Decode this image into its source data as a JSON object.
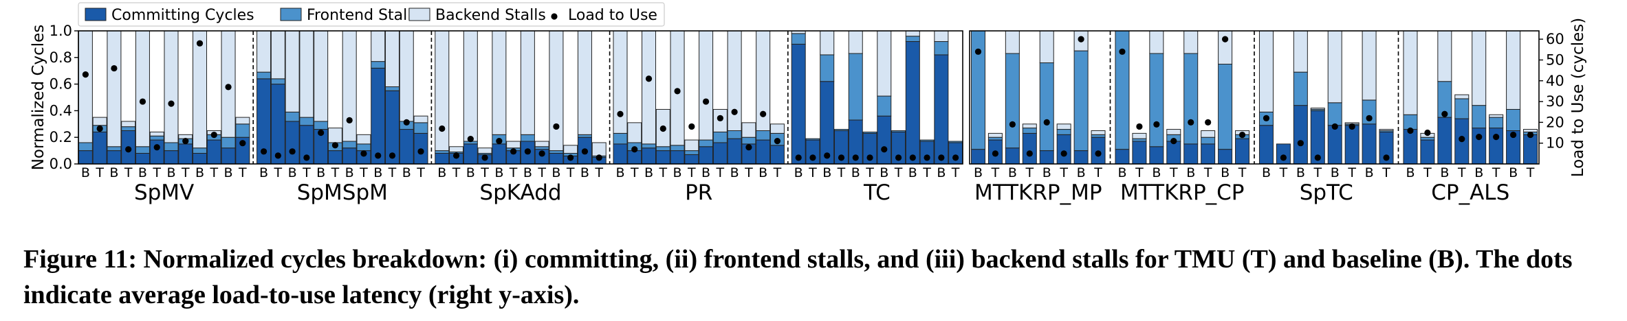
{
  "figure": {
    "caption": "Figure 11: Normalized cycles breakdown: (i) committing, (ii) frontend stalls, and (iii) backend stalls for TMU (T) and baseline (B). The dots indicate average load-to-use latency (right y-axis)."
  },
  "colors": {
    "committing": "#1a5aa9",
    "frontend": "#4b92cc",
    "backend": "#d6e4f3",
    "backend_stroke": "#222222",
    "dot": "#000000"
  },
  "chart_data": [
    {
      "type": "bar",
      "stacked": true,
      "panel": "left",
      "ylabel": "Normalized Cycles",
      "ylim": [
        0,
        1.0
      ],
      "yticks": [
        "0.0",
        "0.2",
        "0.4",
        "0.6",
        "0.8",
        "1.0"
      ],
      "legend": {
        "placement": "top-left",
        "entries": [
          "Committing Cycles",
          "Frontend Stalls",
          "Backend Stalls",
          "Load to Use"
        ]
      },
      "groups": [
        {
          "name": "SpMV",
          "bars": [
            {
              "label": "B",
              "committing": 0.1,
              "frontend": 0.06,
              "backend": 0.84,
              "load_to_use": 43
            },
            {
              "label": "T",
              "committing": 0.24,
              "frontend": 0.05,
              "backend": 0.06,
              "load_to_use": 17
            },
            {
              "label": "B",
              "committing": 0.1,
              "frontend": 0.03,
              "backend": 0.87,
              "load_to_use": 46
            },
            {
              "label": "T",
              "committing": 0.25,
              "frontend": 0.03,
              "backend": 0.04,
              "load_to_use": 7
            },
            {
              "label": "B",
              "committing": 0.08,
              "frontend": 0.05,
              "backend": 0.87,
              "load_to_use": 30
            },
            {
              "label": "T",
              "committing": 0.18,
              "frontend": 0.03,
              "backend": 0.03,
              "load_to_use": 8
            },
            {
              "label": "B",
              "committing": 0.1,
              "frontend": 0.06,
              "backend": 0.84,
              "load_to_use": 29
            },
            {
              "label": "T",
              "committing": 0.15,
              "frontend": 0.04,
              "backend": 0.03,
              "load_to_use": 11
            },
            {
              "label": "B",
              "committing": 0.08,
              "frontend": 0.04,
              "backend": 0.88,
              "load_to_use": 58
            },
            {
              "label": "T",
              "committing": 0.18,
              "frontend": 0.04,
              "backend": 0.03,
              "load_to_use": 14
            },
            {
              "label": "B",
              "committing": 0.12,
              "frontend": 0.08,
              "backend": 0.8,
              "load_to_use": 37
            },
            {
              "label": "T",
              "committing": 0.2,
              "frontend": 0.1,
              "backend": 0.05,
              "load_to_use": 10
            }
          ]
        },
        {
          "name": "SpMSpM",
          "bars": [
            {
              "label": "B",
              "committing": 0.64,
              "frontend": 0.05,
              "backend": 0.31,
              "load_to_use": 6
            },
            {
              "label": "T",
              "committing": 0.6,
              "frontend": 0.04,
              "backend": 0.36,
              "load_to_use": 4
            },
            {
              "label": "B",
              "committing": 0.32,
              "frontend": 0.07,
              "backend": 0.61,
              "load_to_use": 6
            },
            {
              "label": "T",
              "committing": 0.29,
              "frontend": 0.06,
              "backend": 0.65,
              "load_to_use": 3
            },
            {
              "label": "B",
              "committing": 0.26,
              "frontend": 0.06,
              "backend": 0.68,
              "load_to_use": 15
            },
            {
              "label": "T",
              "committing": 0.1,
              "frontend": 0.06,
              "backend": 0.11,
              "load_to_use": 9
            },
            {
              "label": "B",
              "committing": 0.12,
              "frontend": 0.05,
              "backend": 0.83,
              "load_to_use": 21
            },
            {
              "label": "T",
              "committing": 0.1,
              "frontend": 0.05,
              "backend": 0.07,
              "load_to_use": 5
            },
            {
              "label": "B",
              "committing": 0.72,
              "frontend": 0.05,
              "backend": 0.23,
              "load_to_use": 4
            },
            {
              "label": "T",
              "committing": 0.55,
              "frontend": 0.03,
              "backend": 0.42,
              "load_to_use": 4
            },
            {
              "label": "B",
              "committing": 0.26,
              "frontend": 0.06,
              "backend": 0.68,
              "load_to_use": 20
            },
            {
              "label": "T",
              "committing": 0.23,
              "frontend": 0.08,
              "backend": 0.05,
              "load_to_use": 6
            }
          ]
        },
        {
          "name": "SpKAdd",
          "bars": [
            {
              "label": "B",
              "committing": 0.08,
              "frontend": 0.02,
              "backend": 0.9,
              "load_to_use": 17
            },
            {
              "label": "T",
              "committing": 0.08,
              "frontend": 0.01,
              "backend": 0.04,
              "load_to_use": 4
            },
            {
              "label": "B",
              "committing": 0.15,
              "frontend": 0.02,
              "backend": 0.83,
              "load_to_use": 12
            },
            {
              "label": "T",
              "committing": 0.07,
              "frontend": 0.01,
              "backend": 0.04,
              "load_to_use": 3
            },
            {
              "label": "B",
              "committing": 0.15,
              "frontend": 0.07,
              "backend": 0.78,
              "load_to_use": 11
            },
            {
              "label": "T",
              "committing": 0.1,
              "frontend": 0.02,
              "backend": 0.05,
              "load_to_use": 6
            },
            {
              "label": "B",
              "committing": 0.17,
              "frontend": 0.05,
              "backend": 0.78,
              "load_to_use": 6
            },
            {
              "label": "T",
              "committing": 0.11,
              "frontend": 0.02,
              "backend": 0.04,
              "load_to_use": 5
            },
            {
              "label": "B",
              "committing": 0.08,
              "frontend": 0.02,
              "backend": 0.9,
              "load_to_use": 18
            },
            {
              "label": "T",
              "committing": 0.06,
              "frontend": 0.02,
              "backend": 0.06,
              "load_to_use": 3
            },
            {
              "label": "B",
              "committing": 0.2,
              "frontend": 0.02,
              "backend": 0.78,
              "load_to_use": 6
            },
            {
              "label": "T",
              "committing": 0.05,
              "frontend": 0.01,
              "backend": 0.1,
              "load_to_use": 3
            }
          ]
        },
        {
          "name": "PR",
          "bars": [
            {
              "label": "B",
              "committing": 0.15,
              "frontend": 0.08,
              "backend": 0.77,
              "load_to_use": 24
            },
            {
              "label": "T",
              "committing": 0.1,
              "frontend": 0.06,
              "backend": 0.15,
              "load_to_use": 7
            },
            {
              "label": "B",
              "committing": 0.12,
              "frontend": 0.03,
              "backend": 0.85,
              "load_to_use": 41
            },
            {
              "label": "T",
              "committing": 0.1,
              "frontend": 0.03,
              "backend": 0.28,
              "load_to_use": 17
            },
            {
              "label": "B",
              "committing": 0.1,
              "frontend": 0.04,
              "backend": 0.86,
              "load_to_use": 35
            },
            {
              "label": "T",
              "committing": 0.07,
              "frontend": 0.03,
              "backend": 0.08,
              "load_to_use": 18
            },
            {
              "label": "B",
              "committing": 0.13,
              "frontend": 0.05,
              "backend": 0.82,
              "load_to_use": 30
            },
            {
              "label": "T",
              "committing": 0.16,
              "frontend": 0.08,
              "backend": 0.17,
              "load_to_use": 22
            },
            {
              "label": "B",
              "committing": 0.19,
              "frontend": 0.06,
              "backend": 0.75,
              "load_to_use": 25
            },
            {
              "label": "T",
              "committing": 0.15,
              "frontend": 0.05,
              "backend": 0.11,
              "load_to_use": 8
            },
            {
              "label": "B",
              "committing": 0.18,
              "frontend": 0.07,
              "backend": 0.75,
              "load_to_use": 24
            },
            {
              "label": "T",
              "committing": 0.14,
              "frontend": 0.09,
              "backend": 0.07,
              "load_to_use": 11
            }
          ]
        },
        {
          "name": "TC",
          "bars": [
            {
              "label": "B",
              "committing": 0.9,
              "frontend": 0.08,
              "backend": 0.02,
              "load_to_use": 3
            },
            {
              "label": "T",
              "committing": 0.18,
              "frontend": 0.01,
              "backend": 0.0,
              "load_to_use": 3
            },
            {
              "label": "B",
              "committing": 0.62,
              "frontend": 0.2,
              "backend": 0.18,
              "load_to_use": 4
            },
            {
              "label": "T",
              "committing": 0.25,
              "frontend": 0.01,
              "backend": 0.0,
              "load_to_use": 3
            },
            {
              "label": "B",
              "committing": 0.33,
              "frontend": 0.5,
              "backend": 0.17,
              "load_to_use": 3
            },
            {
              "label": "T",
              "committing": 0.23,
              "frontend": 0.01,
              "backend": 0.0,
              "load_to_use": 3
            },
            {
              "label": "B",
              "committing": 0.36,
              "frontend": 0.15,
              "backend": 0.49,
              "load_to_use": 7
            },
            {
              "label": "T",
              "committing": 0.24,
              "frontend": 0.01,
              "backend": 0.0,
              "load_to_use": 3
            },
            {
              "label": "B",
              "committing": 0.92,
              "frontend": 0.04,
              "backend": 0.04,
              "load_to_use": 3
            },
            {
              "label": "T",
              "committing": 0.17,
              "frontend": 0.01,
              "backend": 0.0,
              "load_to_use": 3
            },
            {
              "label": "B",
              "committing": 0.82,
              "frontend": 0.1,
              "backend": 0.08,
              "load_to_use": 3
            },
            {
              "label": "T",
              "committing": 0.16,
              "frontend": 0.01,
              "backend": 0.0,
              "load_to_use": 3
            }
          ]
        }
      ]
    },
    {
      "type": "bar",
      "stacked": true,
      "panel": "right",
      "ylabel": "Load to Use (cycles)",
      "ylim": [
        0,
        1.0
      ],
      "y2lim": [
        0,
        64
      ],
      "y2ticks": [
        "10",
        "20",
        "30",
        "40",
        "50",
        "60"
      ],
      "groups": [
        {
          "name": "MTTKRP_MP",
          "bars": [
            {
              "label": "B",
              "committing": 0.11,
              "frontend": 0.89,
              "backend": 0.0,
              "load_to_use": 54
            },
            {
              "label": "T",
              "committing": 0.18,
              "frontend": 0.02,
              "backend": 0.03,
              "load_to_use": 5
            },
            {
              "label": "B",
              "committing": 0.12,
              "frontend": 0.71,
              "backend": 0.17,
              "load_to_use": 19
            },
            {
              "label": "T",
              "committing": 0.23,
              "frontend": 0.04,
              "backend": 0.03,
              "load_to_use": 5
            },
            {
              "label": "B",
              "committing": 0.1,
              "frontend": 0.66,
              "backend": 0.24,
              "load_to_use": 20
            },
            {
              "label": "T",
              "committing": 0.22,
              "frontend": 0.04,
              "backend": 0.04,
              "load_to_use": 5
            },
            {
              "label": "B",
              "committing": 0.1,
              "frontend": 0.75,
              "backend": 0.15,
              "load_to_use": 60
            },
            {
              "label": "T",
              "committing": 0.2,
              "frontend": 0.02,
              "backend": 0.03,
              "load_to_use": 5
            }
          ]
        },
        {
          "name": "MTTKRP_CP",
          "bars": [
            {
              "label": "B",
              "committing": 0.11,
              "frontend": 0.89,
              "backend": 0.0,
              "load_to_use": 54
            },
            {
              "label": "T",
              "committing": 0.17,
              "frontend": 0.02,
              "backend": 0.04,
              "load_to_use": 18
            },
            {
              "label": "B",
              "committing": 0.13,
              "frontend": 0.7,
              "backend": 0.17,
              "load_to_use": 19
            },
            {
              "label": "T",
              "committing": 0.17,
              "frontend": 0.05,
              "backend": 0.04,
              "load_to_use": 11
            },
            {
              "label": "B",
              "committing": 0.15,
              "frontend": 0.68,
              "backend": 0.17,
              "load_to_use": 20
            },
            {
              "label": "T",
              "committing": 0.15,
              "frontend": 0.05,
              "backend": 0.05,
              "load_to_use": 20
            },
            {
              "label": "B",
              "committing": 0.11,
              "frontend": 0.64,
              "backend": 0.25,
              "load_to_use": 60
            },
            {
              "label": "T",
              "committing": 0.19,
              "frontend": 0.03,
              "backend": 0.03,
              "load_to_use": 14
            }
          ]
        },
        {
          "name": "SpTC",
          "bars": [
            {
              "label": "B",
              "committing": 0.29,
              "frontend": 0.1,
              "backend": 0.61,
              "load_to_use": 22
            },
            {
              "label": "T",
              "committing": 0.15,
              "frontend": 0.0,
              "backend": 0.0,
              "load_to_use": 3
            },
            {
              "label": "B",
              "committing": 0.44,
              "frontend": 0.25,
              "backend": 0.31,
              "load_to_use": 10
            },
            {
              "label": "T",
              "committing": 0.4,
              "frontend": 0.01,
              "backend": 0.01,
              "load_to_use": 3
            },
            {
              "label": "B",
              "committing": 0.29,
              "frontend": 0.17,
              "backend": 0.54,
              "load_to_use": 18
            },
            {
              "label": "T",
              "committing": 0.29,
              "frontend": 0.01,
              "backend": 0.01,
              "load_to_use": 18
            },
            {
              "label": "B",
              "committing": 0.3,
              "frontend": 0.18,
              "backend": 0.52,
              "load_to_use": 22
            },
            {
              "label": "T",
              "committing": 0.24,
              "frontend": 0.01,
              "backend": 0.01,
              "load_to_use": 3
            }
          ]
        },
        {
          "name": "CP_ALS",
          "bars": [
            {
              "label": "B",
              "committing": 0.26,
              "frontend": 0.11,
              "backend": 0.63,
              "load_to_use": 16
            },
            {
              "label": "T",
              "committing": 0.18,
              "frontend": 0.02,
              "backend": 0.03,
              "load_to_use": 15
            },
            {
              "label": "B",
              "committing": 0.35,
              "frontend": 0.27,
              "backend": 0.38,
              "load_to_use": 24
            },
            {
              "label": "T",
              "committing": 0.34,
              "frontend": 0.15,
              "backend": 0.03,
              "load_to_use": 12
            },
            {
              "label": "B",
              "committing": 0.27,
              "frontend": 0.17,
              "backend": 0.56,
              "load_to_use": 13
            },
            {
              "label": "T",
              "committing": 0.27,
              "frontend": 0.08,
              "backend": 0.02,
              "load_to_use": 13
            },
            {
              "label": "B",
              "committing": 0.25,
              "frontend": 0.16,
              "backend": 0.59,
              "load_to_use": 14
            },
            {
              "label": "T",
              "committing": 0.22,
              "frontend": 0.02,
              "backend": 0.02,
              "load_to_use": 14
            }
          ]
        }
      ]
    }
  ]
}
